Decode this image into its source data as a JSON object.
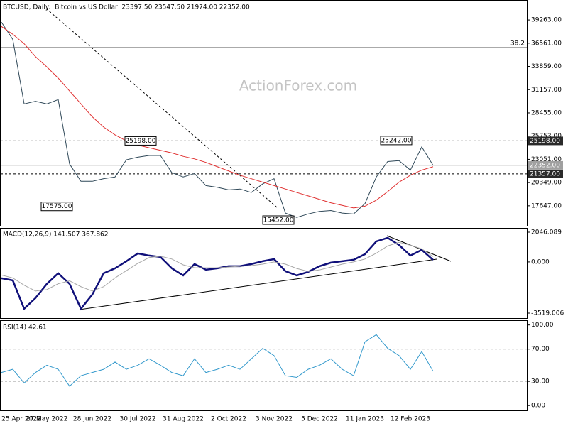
{
  "chart_data": [
    {
      "type": "line",
      "title": "BTCUSD, Daily:  Bitcoin vs US Dollar  23397.50 23547.50 21974.00 22352.00",
      "watermark": "ActionForex.com",
      "categories": [
        "25 Apr 2022",
        null,
        null,
        null,
        "27 May 2022",
        null,
        null,
        null,
        "28 Jun 2022",
        null,
        null,
        null,
        "30 Jul 2022",
        null,
        null,
        null,
        "31 Aug 2022",
        null,
        null,
        null,
        "2 Oct 2022",
        null,
        null,
        null,
        "3 Nov 2022",
        null,
        null,
        null,
        "5 Dec 2022",
        null,
        null,
        null,
        "11 Jan 2023",
        null,
        null,
        null,
        "12 Feb 2023",
        null,
        null
      ],
      "series": [
        {
          "color": "#2f4858",
          "values": [
            39000,
            37000,
            29500,
            29800,
            29500,
            30000,
            22500,
            20500,
            20500,
            20800,
            21000,
            23000,
            23300,
            23500,
            23500,
            21500,
            21000,
            21400,
            20000,
            19800,
            19500,
            19600,
            19200,
            20200,
            20800,
            16800,
            16300,
            16700,
            17000,
            17100,
            16800,
            16700,
            17900,
            21000,
            22800,
            22900,
            21800,
            24500,
            22352
          ]
        },
        {
          "color": "#e03030",
          "values": [
            38500,
            37600,
            36500,
            35000,
            33800,
            32500,
            31000,
            29500,
            28000,
            26800,
            25900,
            25200,
            24700,
            24400,
            24100,
            23800,
            23400,
            23100,
            22700,
            22200,
            21700,
            21200,
            20800,
            20400,
            20000,
            19600,
            19200,
            18800,
            18400,
            18000,
            17700,
            17400,
            17600,
            18300,
            19300,
            20400,
            21200,
            21800,
            22200
          ]
        }
      ],
      "ylim": [
        15323,
        41500
      ],
      "yticks": [
        {
          "value": 39263,
          "label": "39263.00"
        },
        {
          "value": 36561,
          "label": "36561.00"
        },
        {
          "value": 33859,
          "label": "33859.00"
        },
        {
          "value": 31157,
          "label": "31157.00"
        },
        {
          "value": 28455,
          "label": "28455.00"
        },
        {
          "value": 25753,
          "label": "25753.00"
        },
        {
          "value": 23051,
          "label": "23051.00"
        },
        {
          "value": 20349,
          "label": "20349.00"
        },
        {
          "value": 17647,
          "label": "17647.00"
        }
      ],
      "fib_level": {
        "value": 36050,
        "label": "38.2"
      },
      "levels": [
        {
          "value": 25198,
          "label": "25198.00"
        },
        {
          "value": 21357,
          "label": "21357.00"
        }
      ],
      "last_price": {
        "value": 22352,
        "label": "22352.00"
      },
      "annotations": [
        {
          "value": 25198,
          "label": "25198.00"
        },
        {
          "value": 25242,
          "label": "25242.00"
        },
        {
          "value": 17575,
          "label": "17575.00"
        },
        {
          "value": 15452,
          "label": "15452.00"
        }
      ]
    },
    {
      "type": "line",
      "title": "MACD(12,26,9) 141.507 367.862",
      "series": [
        {
          "color": "#10107a",
          "values": [
            -1121,
            -1268,
            -3218,
            -2486,
            -1511,
            -780,
            -1511,
            -3218,
            -2243,
            -780,
            -439,
            49,
            585,
            439,
            341,
            -439,
            -926,
            -146,
            -536,
            -439,
            -293,
            -293,
            -146,
            49,
            195,
            -634,
            -926,
            -683,
            -293,
            -49,
            49,
            146,
            536,
            1414,
            1658,
            1170,
            439,
            829,
            141.507
          ]
        },
        {
          "color": "#a8a8a8",
          "values": [
            -900,
            -1100,
            -1600,
            -2000,
            -1900,
            -1500,
            -1300,
            -1700,
            -2000,
            -1700,
            -1100,
            -600,
            -100,
            300,
            400,
            200,
            -200,
            -400,
            -400,
            -400,
            -350,
            -300,
            -250,
            -150,
            0,
            -150,
            -450,
            -650,
            -550,
            -350,
            -150,
            0,
            200,
            600,
            1100,
            1350,
            1150,
            900,
            367.862
          ]
        }
      ],
      "ylim": [
        -3861,
        2290
      ],
      "yticks": [
        {
          "value": 2046.089,
          "label": "2046.089"
        },
        {
          "value": 0,
          "label": "0.000"
        },
        {
          "value": -3519.006,
          "label": "-3519.006"
        }
      ]
    },
    {
      "type": "line",
      "title": "RSI(14) 42.61",
      "series": [
        {
          "color": "#3399cc",
          "values": [
            41,
            45,
            28,
            41,
            50,
            45,
            24,
            37,
            41,
            45,
            54,
            45,
            50,
            58,
            50,
            41,
            37,
            58,
            41,
            45,
            50,
            45,
            58,
            71,
            62,
            37,
            35,
            45,
            50,
            58,
            45,
            37,
            79,
            88,
            71,
            62,
            45,
            67,
            42.61
          ]
        }
      ],
      "ylim": [
        -6,
        105
      ],
      "yticks": [
        {
          "value": 100,
          "label": "100.00"
        },
        {
          "value": 70,
          "label": "70.00"
        },
        {
          "value": 30,
          "label": "30.00"
        },
        {
          "value": 0,
          "label": "0.00"
        }
      ],
      "levels": [
        70,
        30
      ]
    }
  ]
}
